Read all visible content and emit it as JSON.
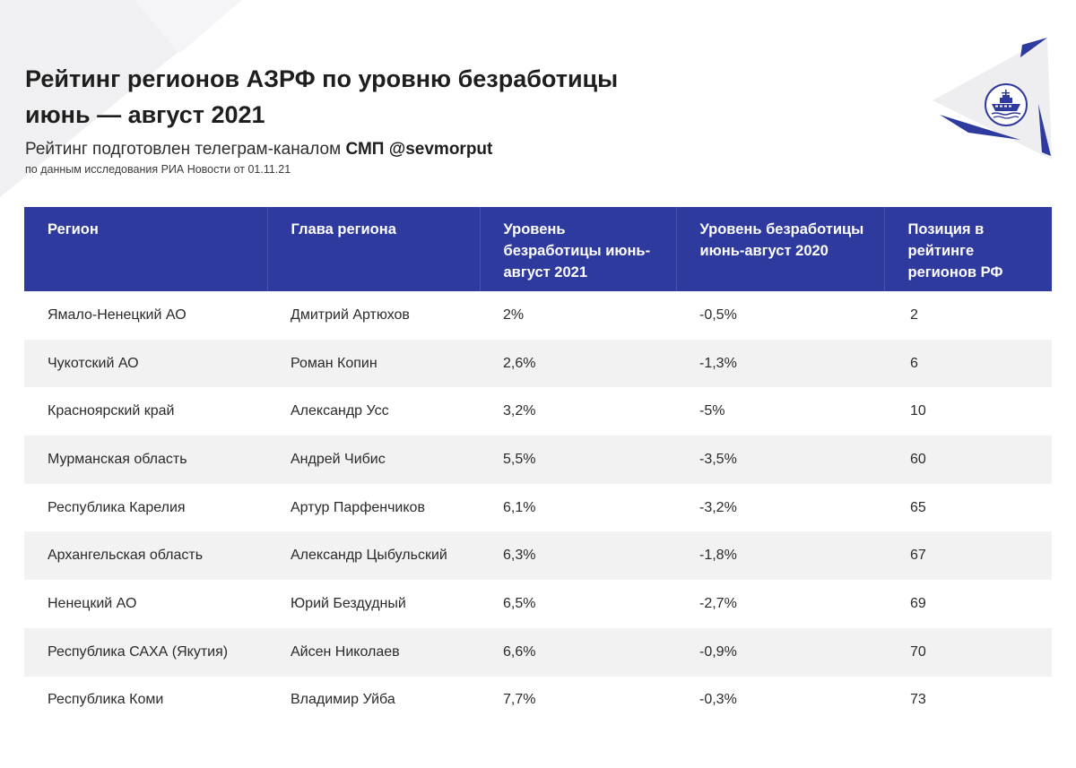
{
  "header": {
    "title_line1": "Рейтинг регионов АЗРФ по уровню безработицы",
    "title_line2": "июнь — август 2021",
    "subtitle_prefix": "Рейтинг подготовлен телеграм-каналом ",
    "subtitle_bold": "СМП @sevmorput",
    "source": "по данным исследования РИА Новости от 01.11.21"
  },
  "logo": {
    "icon": "icebreaker-ship-icon",
    "color": "#2e3a9e"
  },
  "colors": {
    "header_bg": "#2e3a9e",
    "stripe": "#f2f2f2",
    "decor": "#f0f0f2"
  },
  "table": {
    "columns": [
      "Регион",
      "Глава региона",
      "Уровень безработицы июнь-август 2021",
      "Уровень безработицы июнь-август 2020",
      "Позиция в рейтинге регионов РФ"
    ],
    "rows": [
      [
        "Ямало-Ненецкий АО",
        "Дмитрий Артюхов",
        "2%",
        "-0,5%",
        "2"
      ],
      [
        "Чукотский АО",
        "Роман Копин",
        "2,6%",
        "-1,3%",
        "6"
      ],
      [
        "Красноярский край",
        "Александр Усс",
        "3,2%",
        "-5%",
        "10"
      ],
      [
        "Мурманская область",
        "Андрей Чибис",
        "5,5%",
        "-3,5%",
        "60"
      ],
      [
        "Республика Карелия",
        "Артур Парфенчиков",
        "6,1%",
        "-3,2%",
        "65"
      ],
      [
        "Архангельская область",
        "Александр Цыбульский",
        "6,3%",
        "-1,8%",
        "67"
      ],
      [
        "Ненецкий АО",
        "Юрий Бездудный",
        "6,5%",
        "-2,7%",
        "69"
      ],
      [
        "Республика САХА (Якутия)",
        "Айсен Николаев",
        "6,6%",
        "-0,9%",
        "70"
      ],
      [
        "Республика Коми",
        "Владимир Уйба",
        "7,7%",
        "-0,3%",
        "73"
      ]
    ]
  }
}
